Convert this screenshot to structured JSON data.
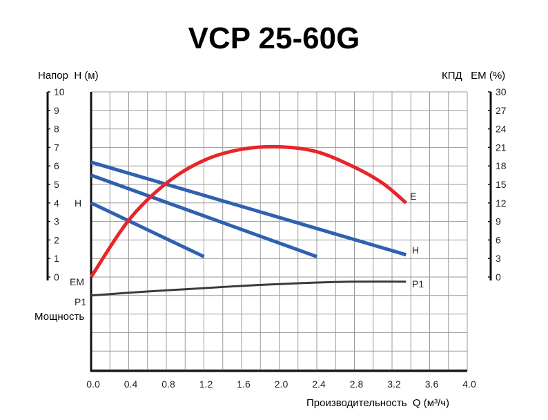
{
  "chart_data": {
    "type": "line",
    "title": "VCP 25-60G",
    "xlabel": "Производительность  Q (м³/ч)",
    "ylabel_left": "Напор  H (м)",
    "ylabel_right": "КПД   ЕМ (%)",
    "power_label": "Мощность",
    "x_ticks": [
      "0.0",
      "0.4",
      "0.8",
      "1.2",
      "1.6",
      "2.0",
      "2.4",
      "2.8",
      "3.2",
      "3.6",
      "4.0"
    ],
    "xlim": [
      0,
      4.0
    ],
    "y_left_ticks": [
      "0",
      "1",
      "2",
      "3",
      "4",
      "5",
      "6",
      "7",
      "8",
      "9",
      "10"
    ],
    "ylim_left": [
      0,
      10
    ],
    "y_right_ticks": [
      "0",
      "3",
      "6",
      "9",
      "12",
      "15",
      "18",
      "21",
      "24",
      "27",
      "30"
    ],
    "ylim_right": [
      0,
      30
    ],
    "grid": true,
    "colors": {
      "head": "#3060b0",
      "efficiency": "#e8252b",
      "power": "#3a3a3a",
      "grid": "#9a9a9a",
      "axis": "#111111"
    },
    "series": [
      {
        "name": "H",
        "kind": "head",
        "x": [
          0,
          1.2
        ],
        "y": [
          4.0,
          1.1
        ]
      },
      {
        "name": "H",
        "kind": "head",
        "x": [
          0,
          2.4
        ],
        "y": [
          5.5,
          1.1
        ]
      },
      {
        "name": "H",
        "kind": "head",
        "x": [
          0,
          3.35
        ],
        "y": [
          6.2,
          1.2
        ]
      },
      {
        "name": "E",
        "kind": "efficiency",
        "x": [
          0,
          0.4,
          0.8,
          1.2,
          1.6,
          2.0,
          2.4,
          2.8,
          3.1,
          3.35
        ],
        "y": [
          0,
          9.2,
          15.2,
          18.9,
          20.7,
          21.1,
          20.3,
          17.8,
          15.2,
          12.0
        ]
      },
      {
        "name": "P1",
        "kind": "power",
        "x": [
          0,
          0.4,
          0.8,
          1.2,
          1.6,
          2.0,
          2.4,
          2.8,
          3.35
        ],
        "y": [
          -1.0,
          -0.85,
          -0.72,
          -0.6,
          -0.48,
          -0.38,
          -0.3,
          -0.25,
          -0.25
        ]
      }
    ],
    "labels": {
      "head": "H",
      "efficiency": "E",
      "power": "P1",
      "em": "EM"
    }
  }
}
